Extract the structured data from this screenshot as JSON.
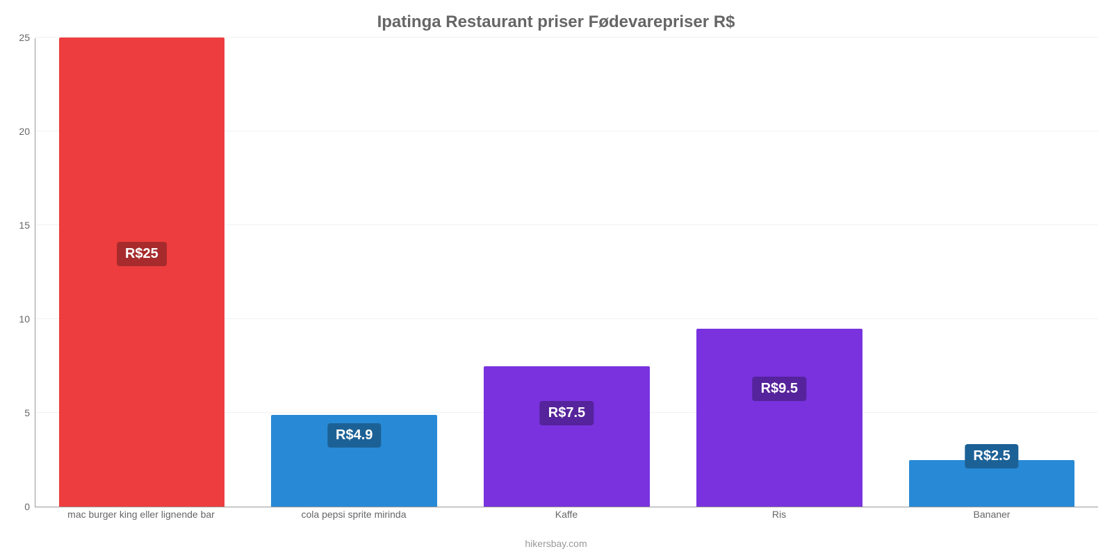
{
  "chart": {
    "type": "bar",
    "title": "Ipatinga Restaurant priser Fødevarepriser R$",
    "title_fontsize": 24,
    "title_color": "#666666",
    "source_label": "hikersbay.com",
    "source_color": "#999999",
    "background_color": "#ffffff",
    "axis_color": "#999999",
    "grid_color": "#f1f1f1",
    "ylim": [
      0,
      25
    ],
    "ytick_step": 5,
    "yticks": [
      0,
      5,
      10,
      15,
      20,
      25
    ],
    "ytick_fontsize": 14,
    "ytick_color": "#666666",
    "xtick_fontsize": 14,
    "xtick_color": "#666666",
    "bar_width_pct": 78,
    "value_label_fontsize": 20,
    "value_label_text_color": "#ffffff",
    "categories": [
      "mac burger king eller lignende bar",
      "cola pepsi sprite mirinda",
      "Kaffe",
      "Ris",
      "Bananer"
    ],
    "values": [
      25,
      4.9,
      7.5,
      9.5,
      2.5
    ],
    "value_labels": [
      "R$25",
      "R$4.9",
      "R$7.5",
      "R$9.5",
      "R$2.5"
    ],
    "bar_colors": [
      "#ee3d3e",
      "#288ad6",
      "#7932de",
      "#7932de",
      "#288ad6"
    ],
    "value_label_bg_colors": [
      "#a72b2c",
      "#1c6196",
      "#55239b",
      "#55239b",
      "#1c6196"
    ],
    "value_label_y_values": [
      13.5,
      3.8,
      5.0,
      6.3,
      2.7
    ]
  }
}
